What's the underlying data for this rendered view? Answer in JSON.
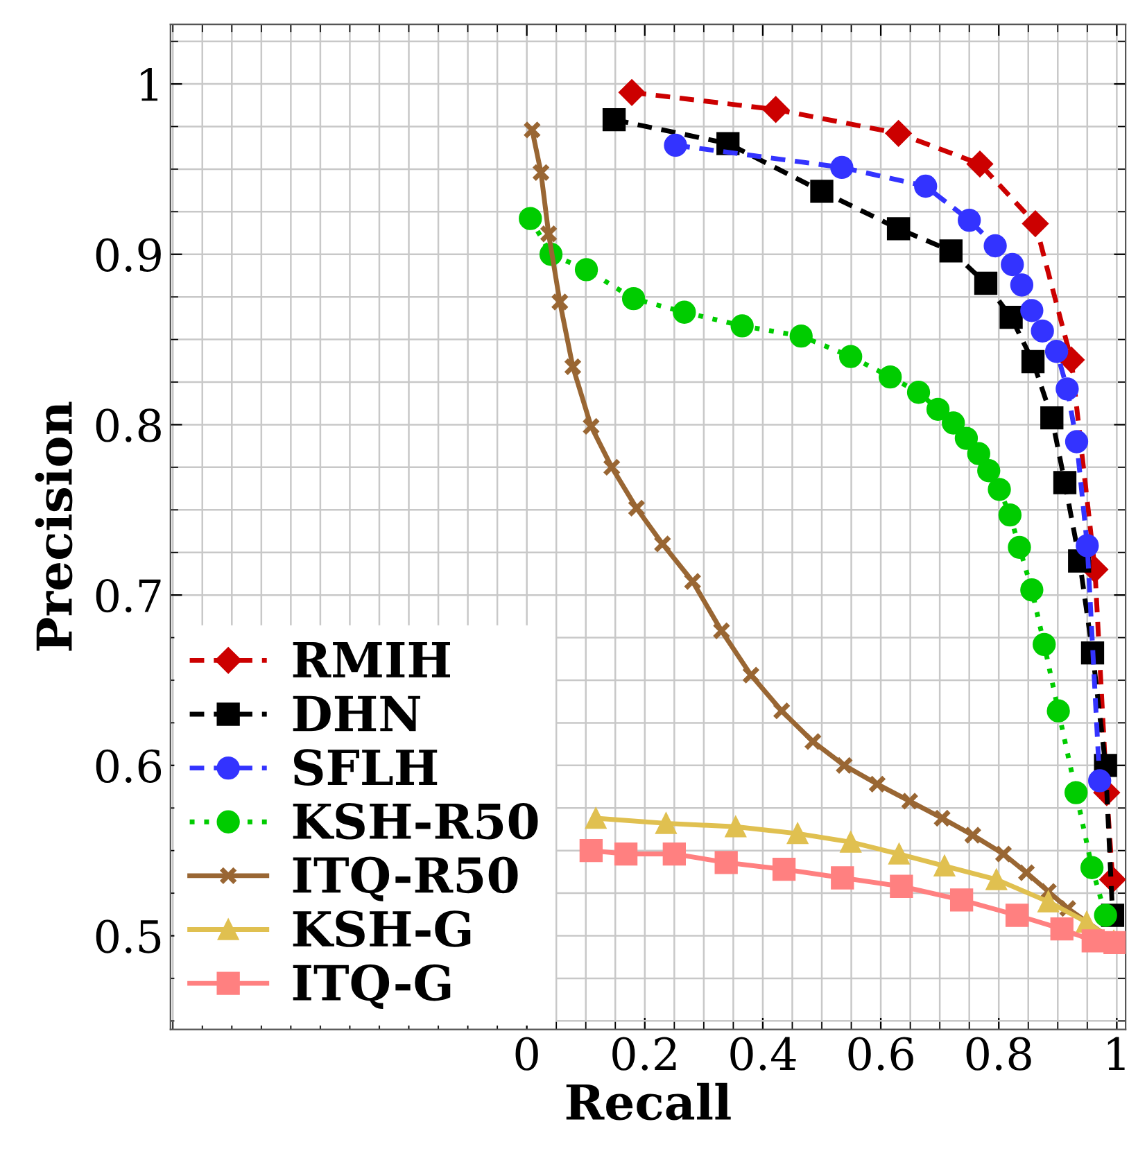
{
  "chart_data": {
    "type": "line",
    "xlabel": "Recall",
    "ylabel": "Precision",
    "xlim": [
      -0.604,
      1.015
    ],
    "ylim": [
      0.445,
      1.035
    ],
    "xticks": [
      0,
      0.2,
      0.4,
      0.6,
      0.8,
      1
    ],
    "yticks": [
      0.5,
      0.6,
      0.7,
      0.8,
      0.9,
      1
    ],
    "grid": true,
    "legend": "bottom left",
    "series": [
      {
        "name": "RMIH",
        "color": "#cc0000",
        "marker": "diamond",
        "line_style": "dashed",
        "x": [
          0.178,
          0.422,
          0.63,
          0.768,
          0.862,
          0.923,
          0.963,
          0.983,
          0.993
        ],
        "values": [
          0.995,
          0.985,
          0.971,
          0.953,
          0.918,
          0.838,
          0.715,
          0.584,
          0.533
        ]
      },
      {
        "name": "DHN",
        "color": "#000000",
        "marker": "square",
        "line_style": "dashed",
        "x": [
          0.148,
          0.341,
          0.5,
          0.63,
          0.719,
          0.778,
          0.821,
          0.858,
          0.89,
          0.912,
          0.937,
          0.959,
          0.981,
          0.993
        ],
        "values": [
          0.979,
          0.965,
          0.937,
          0.915,
          0.902,
          0.883,
          0.863,
          0.837,
          0.804,
          0.766,
          0.72,
          0.666,
          0.6,
          0.512
        ]
      },
      {
        "name": "SFLH",
        "color": "#3333ff",
        "marker": "circle",
        "line_style": "dashed",
        "x": [
          0.252,
          0.534,
          0.676,
          0.75,
          0.794,
          0.823,
          0.839,
          0.856,
          0.874,
          0.898,
          0.916,
          0.932,
          0.95,
          0.971
        ],
        "values": [
          0.964,
          0.951,
          0.94,
          0.92,
          0.905,
          0.894,
          0.882,
          0.867,
          0.855,
          0.843,
          0.821,
          0.79,
          0.729,
          0.591
        ]
      },
      {
        "name": "KSH-R50",
        "color": "#00cc00",
        "marker": "circle",
        "line_style": "dotted",
        "x": [
          0.006,
          0.041,
          0.101,
          0.181,
          0.267,
          0.365,
          0.465,
          0.549,
          0.616,
          0.664,
          0.697,
          0.723,
          0.745,
          0.766,
          0.783,
          0.801,
          0.819,
          0.835,
          0.856,
          0.877,
          0.901,
          0.931,
          0.958,
          0.981
        ],
        "values": [
          0.921,
          0.9,
          0.891,
          0.874,
          0.866,
          0.858,
          0.852,
          0.84,
          0.828,
          0.819,
          0.809,
          0.801,
          0.792,
          0.783,
          0.773,
          0.762,
          0.747,
          0.728,
          0.703,
          0.671,
          0.632,
          0.584,
          0.54,
          0.512
        ]
      },
      {
        "name": "ITQ-R50",
        "color": "#996633",
        "marker": "cross",
        "line_style": "solid",
        "x": [
          0.009,
          0.024,
          0.037,
          0.056,
          0.078,
          0.109,
          0.144,
          0.186,
          0.23,
          0.281,
          0.33,
          0.38,
          0.432,
          0.485,
          0.538,
          0.594,
          0.649,
          0.704,
          0.756,
          0.808,
          0.847,
          0.884,
          0.917,
          0.995
        ],
        "values": [
          0.973,
          0.948,
          0.912,
          0.872,
          0.834,
          0.799,
          0.775,
          0.751,
          0.73,
          0.708,
          0.679,
          0.653,
          0.632,
          0.614,
          0.6,
          0.589,
          0.579,
          0.569,
          0.559,
          0.548,
          0.537,
          0.526,
          0.516,
          0.497
        ]
      },
      {
        "name": "KSH-G",
        "color": "#e0c050",
        "marker": "triangle",
        "line_style": "solid",
        "x": [
          0.117,
          0.236,
          0.354,
          0.459,
          0.549,
          0.631,
          0.708,
          0.796,
          0.884,
          0.949,
          0.995
        ],
        "values": [
          0.569,
          0.566,
          0.564,
          0.56,
          0.555,
          0.548,
          0.541,
          0.533,
          0.52,
          0.508,
          0.497
        ]
      },
      {
        "name": "ITQ-G",
        "color": "#ff8080",
        "marker": "square",
        "line_style": "solid",
        "x": [
          0.109,
          0.168,
          0.25,
          0.338,
          0.436,
          0.535,
          0.635,
          0.737,
          0.831,
          0.907,
          0.96,
          0.997
        ],
        "values": [
          0.55,
          0.548,
          0.548,
          0.543,
          0.539,
          0.534,
          0.529,
          0.521,
          0.512,
          0.504,
          0.497,
          0.496
        ]
      }
    ]
  }
}
